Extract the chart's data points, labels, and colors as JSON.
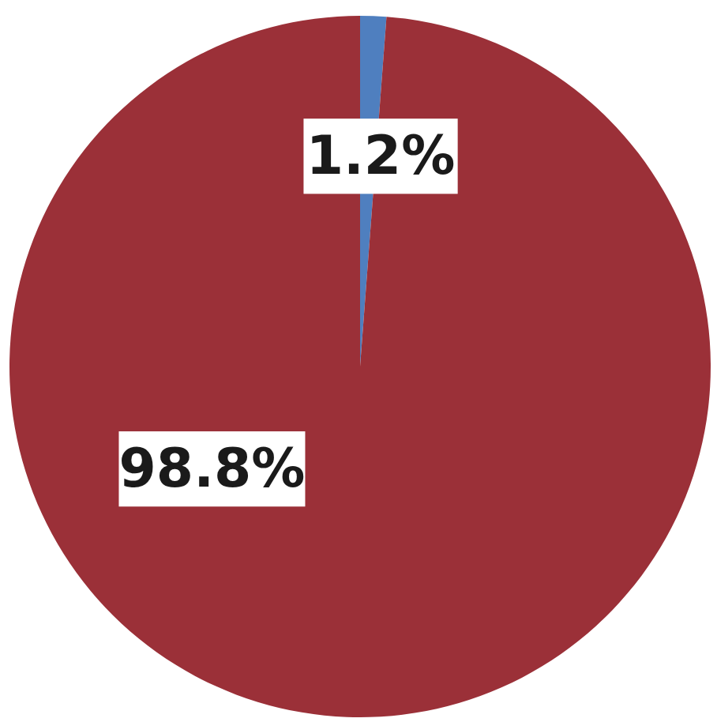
{
  "chart_data": {
    "type": "pie",
    "categories": [
      null,
      null
    ],
    "values": [
      1.2,
      98.8
    ],
    "colors": [
      "#4f7fbf",
      "#9b3038"
    ],
    "value_labels": [
      "1.2%",
      "98.8%"
    ]
  }
}
